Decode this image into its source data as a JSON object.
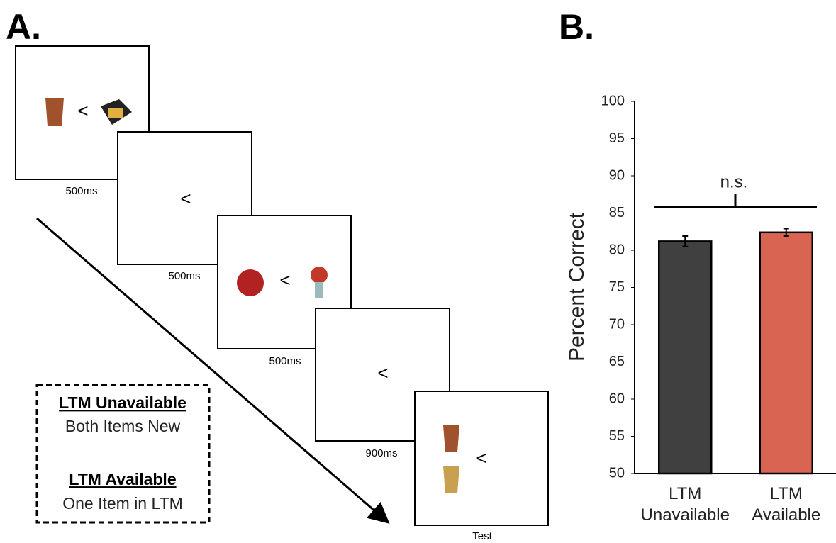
{
  "panel_a": {
    "label": "A.",
    "frames": [
      {
        "symbol": "<",
        "duration": "500ms"
      },
      {
        "symbol": "<",
        "duration": "500ms"
      },
      {
        "symbol": "<",
        "duration": "500ms"
      },
      {
        "symbol": "<",
        "duration": "900ms"
      },
      {
        "symbol": "<",
        "duration": "Test"
      }
    ],
    "legend": {
      "condition_1": "LTM Unavailable",
      "description_1": "Both Items New",
      "condition_2": "LTM Available",
      "description_2": "One Item in LTM"
    }
  },
  "chart_data": {
    "type": "bar",
    "panel_label": "B.",
    "y_label": "Percent Correct",
    "annotation": "n.s.",
    "categories": [
      "LTM Unavailable",
      "LTM Available"
    ],
    "values": [
      81.2,
      82.4
    ],
    "errors": [
      0.7,
      0.5
    ],
    "colors": [
      "#404040",
      "#d96452"
    ],
    "ylim": [
      50,
      100
    ],
    "yticks": [
      50,
      55,
      60,
      65,
      70,
      75,
      80,
      85,
      90,
      95,
      100
    ]
  }
}
